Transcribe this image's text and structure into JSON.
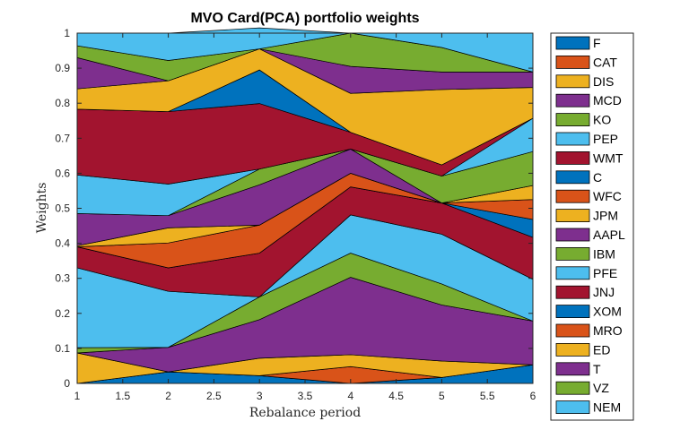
{
  "chart_data": {
    "type": "area",
    "title": "MVO Card(PCA) portfolio weights",
    "xlabel": "Rebalance period",
    "ylabel": "Weights",
    "x": [
      1,
      2,
      3,
      4,
      5,
      6
    ],
    "xlim": [
      1,
      6
    ],
    "ylim": [
      0,
      1
    ],
    "xticks": [
      "1",
      "1.5",
      "2",
      "2.5",
      "3",
      "3.5",
      "4",
      "4.5",
      "5",
      "5.5",
      "6"
    ],
    "yticks": [
      "0",
      "0.1",
      "0.2",
      "0.3",
      "0.4",
      "0.5",
      "0.6",
      "0.7",
      "0.8",
      "0.9",
      "1"
    ],
    "stacked": true,
    "grid": false,
    "legend_position": "outside-right",
    "series": [
      {
        "name": "F",
        "color": "#0072BD",
        "values": [
          0.0,
          0.033,
          0.022,
          0.0,
          0.017,
          0.053
        ]
      },
      {
        "name": "CAT",
        "color": "#D95319",
        "values": [
          0.0,
          0.0,
          0.0,
          0.048,
          0.0,
          0.0
        ]
      },
      {
        "name": "DIS",
        "color": "#EDB120",
        "values": [
          0.087,
          0.0,
          0.05,
          0.034,
          0.047,
          0.0
        ]
      },
      {
        "name": "MCD",
        "color": "#7E2F8E",
        "values": [
          0.0,
          0.07,
          0.11,
          0.221,
          0.16,
          0.125
        ]
      },
      {
        "name": "KO",
        "color": "#77AC30",
        "values": [
          0.015,
          0.0,
          0.065,
          0.069,
          0.06,
          0.0
        ]
      },
      {
        "name": "PEP",
        "color": "#4DBEEE",
        "values": [
          0.228,
          0.16,
          0.0,
          0.109,
          0.142,
          0.119
        ]
      },
      {
        "name": "WMT",
        "color": "#A2142F",
        "values": [
          0.06,
          0.067,
          0.125,
          0.08,
          0.089,
          0.12
        ]
      },
      {
        "name": "C",
        "color": "#0072BD",
        "values": [
          0.0,
          0.0,
          0.0,
          0.0,
          0.0,
          0.051
        ]
      },
      {
        "name": "WFC",
        "color": "#D95319",
        "values": [
          0.0,
          0.071,
          0.08,
          0.039,
          0.0,
          0.057
        ]
      },
      {
        "name": "JPM",
        "color": "#EDB120",
        "values": [
          0.003,
          0.043,
          0.0,
          0.0,
          0.0,
          0.04
        ]
      },
      {
        "name": "AAPL",
        "color": "#7E2F8E",
        "values": [
          0.092,
          0.035,
          0.115,
          0.069,
          0.0,
          0.0
        ]
      },
      {
        "name": "IBM",
        "color": "#77AC30",
        "values": [
          0.0,
          0.0,
          0.045,
          0.0,
          0.077,
          0.097
        ]
      },
      {
        "name": "PFE",
        "color": "#4DBEEE",
        "values": [
          0.11,
          0.09,
          0.0,
          0.0,
          0.0,
          0.095
        ]
      },
      {
        "name": "JNJ",
        "color": "#A2142F",
        "values": [
          0.188,
          0.207,
          0.187,
          0.048,
          0.032,
          0.0
        ]
      },
      {
        "name": "XOM",
        "color": "#0072BD",
        "values": [
          0.0,
          0.0,
          0.096,
          0.0,
          0.0,
          0.0
        ]
      },
      {
        "name": "MRO",
        "color": "#D95319",
        "values": [
          0.0,
          0.0,
          0.0,
          0.0,
          0.0,
          0.0
        ]
      },
      {
        "name": "ED",
        "color": "#EDB120",
        "values": [
          0.058,
          0.088,
          0.06,
          0.111,
          0.215,
          0.088
        ]
      },
      {
        "name": "T",
        "color": "#7E2F8E",
        "values": [
          0.089,
          0.0,
          0.0,
          0.077,
          0.05,
          0.044
        ]
      },
      {
        "name": "VZ",
        "color": "#77AC30",
        "values": [
          0.034,
          0.058,
          0.0,
          0.095,
          0.07,
          0.0
        ]
      },
      {
        "name": "NEM",
        "color": "#4DBEEE",
        "values": [
          0.036,
          0.078,
          0.06,
          0.0,
          0.041,
          0.111
        ]
      }
    ]
  }
}
